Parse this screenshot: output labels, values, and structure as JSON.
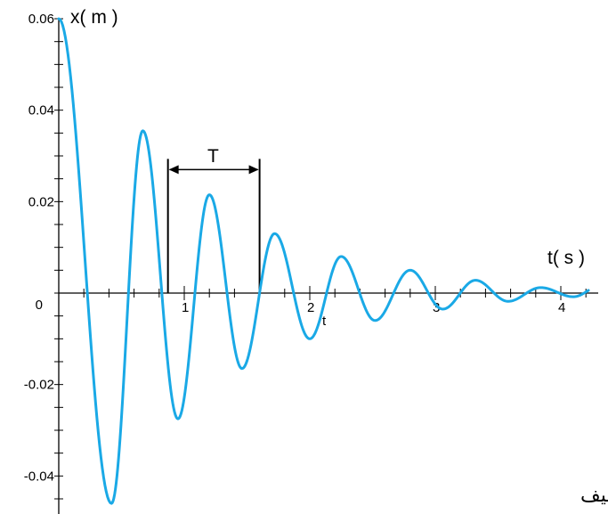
{
  "chart_data": {
    "type": "line",
    "ylabel": "x( m )",
    "xlabel": "t( s )",
    "xlim": [
      0,
      4.3
    ],
    "ylim": [
      -0.048,
      0.062
    ],
    "x_ticks": [
      {
        "value": 1,
        "label": "1"
      },
      {
        "value": 2,
        "label": "2"
      },
      {
        "value": 3,
        "label": "3"
      },
      {
        "value": 4,
        "label": "4"
      }
    ],
    "y_ticks": [
      {
        "value": 0.06,
        "label": "0.06"
      },
      {
        "value": 0.04,
        "label": "0.04"
      },
      {
        "value": 0.02,
        "label": "0.02"
      },
      {
        "value": 0,
        "label": "0"
      },
      {
        "value": -0.02,
        "label": "-0.02"
      },
      {
        "value": -0.04,
        "label": "-0.04"
      }
    ],
    "extra_axis_label": "t",
    "period_label": "T",
    "period_marker": {
      "t_start": 0.87,
      "t_end": 1.6,
      "y": 0.027
    },
    "caption": "تذبذبات شبه دورية لنواس مرن خموده ضعيف",
    "series": [
      {
        "color": "#1aa9e6",
        "points": [
          [
            0,
            0.06
          ],
          [
            0.42,
            -0.046
          ],
          [
            0.67,
            0.0355
          ],
          [
            0.95,
            -0.0275
          ],
          [
            1.2,
            0.0215
          ],
          [
            1.46,
            -0.0165
          ],
          [
            1.72,
            0.013
          ],
          [
            2.0,
            -0.01
          ],
          [
            2.25,
            0.008
          ],
          [
            2.52,
            -0.006
          ],
          [
            2.8,
            0.005
          ],
          [
            3.06,
            -0.0035
          ],
          [
            3.32,
            0.0028
          ],
          [
            3.58,
            -0.0018
          ],
          [
            3.84,
            0.0012
          ],
          [
            4.1,
            -0.0008
          ]
        ]
      }
    ],
    "grid": false
  }
}
